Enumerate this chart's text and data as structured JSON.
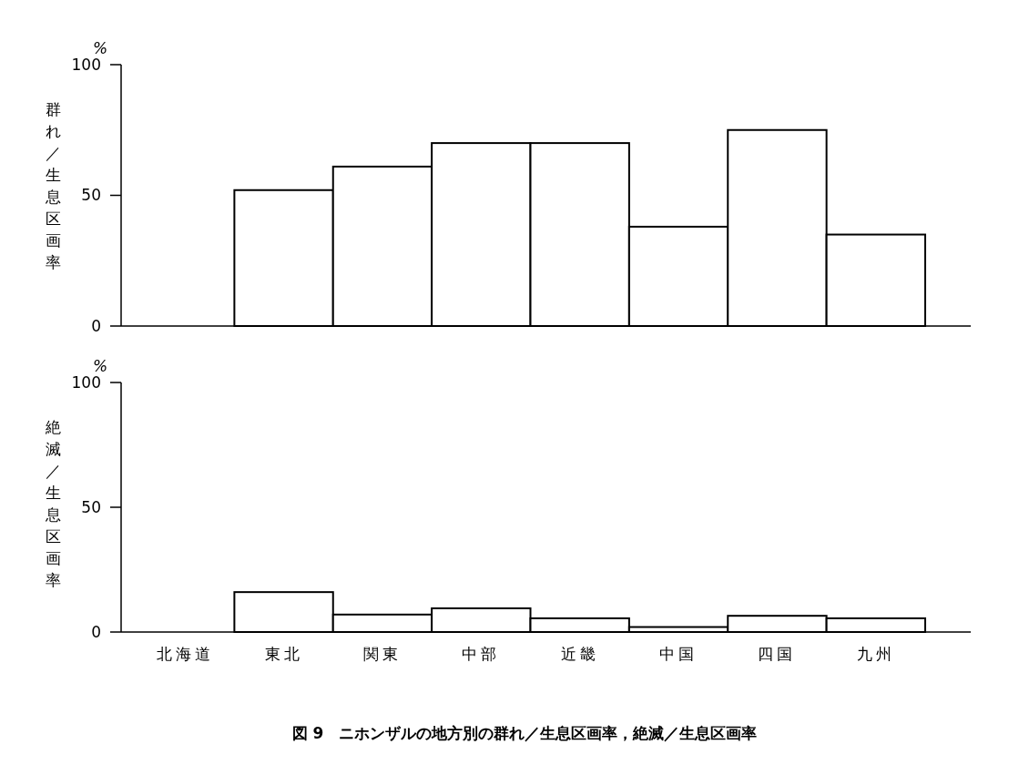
{
  "chart_data": [
    {
      "type": "bar",
      "ylabel": "群れ／生息区画率",
      "categories": [
        null,
        null,
        null,
        null,
        null,
        null,
        null,
        null
      ],
      "values": [
        0,
        52,
        61,
        70,
        70,
        38,
        75,
        35
      ],
      "color": "#ffffff",
      "ylim": [
        0,
        100
      ],
      "yticks": [
        0,
        50,
        100
      ],
      "tick_labels": "y",
      "annotations": [
        "%"
      ]
    },
    {
      "type": "bar",
      "ylabel": "絶滅／生息区画率",
      "categories": [
        "北海道",
        "東北",
        "関東",
        "中部",
        "近畿",
        "中国",
        "四国",
        "九州"
      ],
      "values": [
        0,
        16,
        7,
        9.5,
        5.5,
        2,
        6.5,
        5.5
      ],
      "color": "#ffffff",
      "ylim": [
        0,
        100
      ],
      "yticks": [
        0,
        50,
        100
      ],
      "annotations": [
        "%",
        "図 9　ニホンザルの地方別の群れ／生息区画率，絶滅／生息区画率"
      ]
    }
  ]
}
